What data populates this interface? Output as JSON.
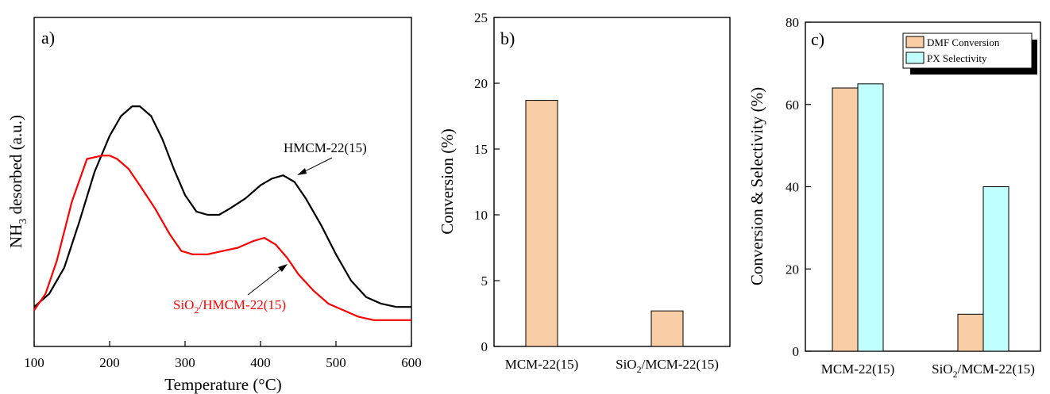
{
  "colors": {
    "bar_orange": "#f9cda5",
    "bar_cyan": "#c0fdfd",
    "line_black": "#000000",
    "line_red": "#ff0000"
  },
  "chart_data": [
    {
      "panel": "a)",
      "type": "line",
      "xlabel": "Temperature (°C)",
      "ylabel_main": "NH",
      "ylabel_sub": "3",
      "ylabel_rest": " desorbed (a.u.)",
      "xlim": [
        100,
        600
      ],
      "xticks": [
        "100",
        "200",
        "300",
        "400",
        "500",
        "600"
      ],
      "ylim": [
        0,
        1
      ],
      "series": [
        {
          "annotation": "HMCM-22(15)",
          "color": "#000000",
          "x": [
            100,
            120,
            140,
            160,
            180,
            200,
            215,
            230,
            240,
            255,
            270,
            285,
            300,
            315,
            330,
            345,
            360,
            380,
            400,
            415,
            430,
            445,
            460,
            480,
            500,
            520,
            540,
            560,
            580,
            600
          ],
          "y": [
            0.12,
            0.16,
            0.24,
            0.38,
            0.53,
            0.64,
            0.7,
            0.73,
            0.73,
            0.7,
            0.63,
            0.54,
            0.46,
            0.41,
            0.4,
            0.4,
            0.42,
            0.45,
            0.49,
            0.51,
            0.52,
            0.5,
            0.45,
            0.37,
            0.28,
            0.2,
            0.15,
            0.13,
            0.12,
            0.12
          ]
        },
        {
          "annotation_prefix": "SiO",
          "annotation_sub": "2",
          "annotation_suffix": "/HMCM-22(15)",
          "color": "#ff0000",
          "x": [
            100,
            115,
            130,
            150,
            170,
            190,
            200,
            210,
            225,
            240,
            260,
            280,
            295,
            310,
            330,
            350,
            370,
            390,
            405,
            420,
            435,
            450,
            470,
            490,
            510,
            530,
            550,
            570,
            600
          ],
          "y": [
            0.11,
            0.16,
            0.26,
            0.44,
            0.57,
            0.58,
            0.58,
            0.57,
            0.54,
            0.49,
            0.42,
            0.34,
            0.29,
            0.28,
            0.28,
            0.29,
            0.3,
            0.32,
            0.33,
            0.31,
            0.27,
            0.22,
            0.17,
            0.13,
            0.11,
            0.09,
            0.08,
            0.08,
            0.08
          ]
        }
      ]
    },
    {
      "panel": "b)",
      "type": "bar",
      "ylabel": "Conversion (%)",
      "ylim": [
        0,
        25
      ],
      "yticks": [
        "0",
        "5",
        "10",
        "15",
        "20",
        "25"
      ],
      "categories": [
        {
          "main": "MCM-22(15)",
          "sub": "",
          "rest": ""
        },
        {
          "main": "SiO",
          "sub": "2",
          "rest": "/MCM-22(15)"
        }
      ],
      "values": [
        18.7,
        2.7
      ]
    },
    {
      "panel": "c)",
      "type": "bar",
      "ylabel": "Conversion & Selectivity (%)",
      "ylim": [
        0,
        80
      ],
      "yticks": [
        "0",
        "20",
        "40",
        "60",
        "80"
      ],
      "categories": [
        {
          "main": "MCM-22(15)",
          "sub": "",
          "rest": ""
        },
        {
          "main": "SiO",
          "sub": "2",
          "rest": "/MCM-22(15)"
        }
      ],
      "series": [
        {
          "name": "DMF Conversion",
          "color": "#f9cda5",
          "values": [
            64,
            9
          ]
        },
        {
          "name": "PX Selectivity",
          "color": "#c0fdfd",
          "values": [
            65,
            40
          ]
        }
      ],
      "legend": "top-right"
    }
  ]
}
